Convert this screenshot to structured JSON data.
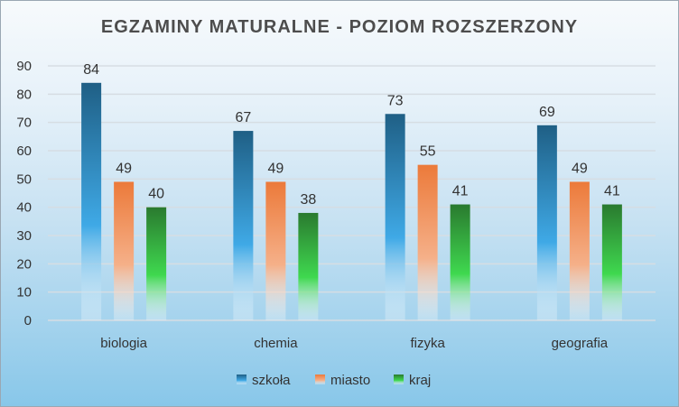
{
  "chart_data": {
    "type": "bar",
    "title": "EGZAMINY MATURALNE - POZIOM ROZSZERZONY",
    "categories": [
      "biologia",
      "chemia",
      "fizyka",
      "geografia"
    ],
    "series": [
      {
        "name": "szkoła",
        "values": [
          84,
          67,
          73,
          69
        ],
        "color": "#1f5f85"
      },
      {
        "name": "miasto",
        "values": [
          49,
          49,
          55,
          49
        ],
        "color": "#ec7a3a"
      },
      {
        "name": "kraj",
        "values": [
          40,
          38,
          41,
          41
        ],
        "color": "#2a7a2f"
      }
    ],
    "ylim": [
      0,
      90
    ],
    "yticks": [
      0,
      10,
      20,
      30,
      40,
      50,
      60,
      70,
      80,
      90
    ],
    "grid": true,
    "legend_position": "bottom"
  }
}
